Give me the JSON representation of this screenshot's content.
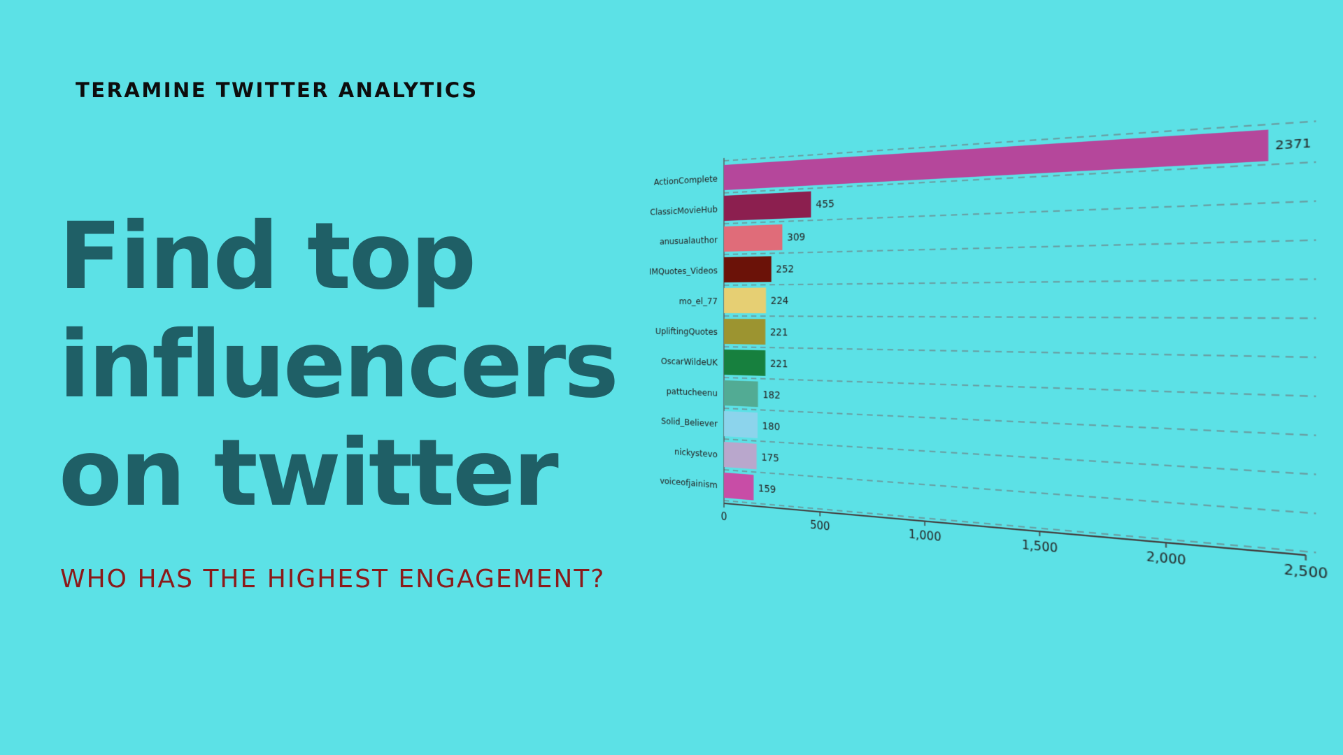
{
  "brand": "TERAMINE TWITTER ANALYTICS",
  "headline": {
    "line1": "Find top",
    "line2": "influencers",
    "line3": "on twitter"
  },
  "subhead": "WHO HAS THE HIGHEST ENGAGEMENT?",
  "colors": {
    "background": "#5ce1e6",
    "headline": "#1f5f66",
    "subhead": "#8b1a1a",
    "brand": "#0d0d0d"
  },
  "chart_data": {
    "type": "bar",
    "orientation": "horizontal",
    "title": "",
    "xlabel": "",
    "ylabel": "",
    "categories": [
      "ActionComplete",
      "ClassicMovieHub",
      "anusualauthor",
      "IMQuotes_Videos",
      "mo_el_77",
      "UpliftingQuotes",
      "OscarWildeUK",
      "pattucheenu",
      "Solid_Believer",
      "nickystevo",
      "voiceofjainism"
    ],
    "values": [
      2371,
      455,
      309,
      252,
      224,
      221,
      221,
      182,
      180,
      175,
      159
    ],
    "value_labels": [
      "2371",
      "455",
      "309",
      "252",
      "224",
      "221",
      "221",
      "182",
      "180",
      "175",
      "159"
    ],
    "bar_colors": [
      "#b5479b",
      "#8c1f4f",
      "#e06c79",
      "#6b1208",
      "#e6cf73",
      "#9c9430",
      "#17803e",
      "#52ab94",
      "#8cd4ec",
      "#b9a7cc",
      "#c84da6"
    ],
    "xlim": [
      0,
      2500
    ],
    "x_ticks": [
      0,
      500,
      1000,
      1500,
      2000,
      2500
    ],
    "x_tick_labels": [
      "0",
      "500",
      "1,000",
      "1,500",
      "2,000",
      "2,500"
    ],
    "grid": true,
    "legend": "none"
  }
}
